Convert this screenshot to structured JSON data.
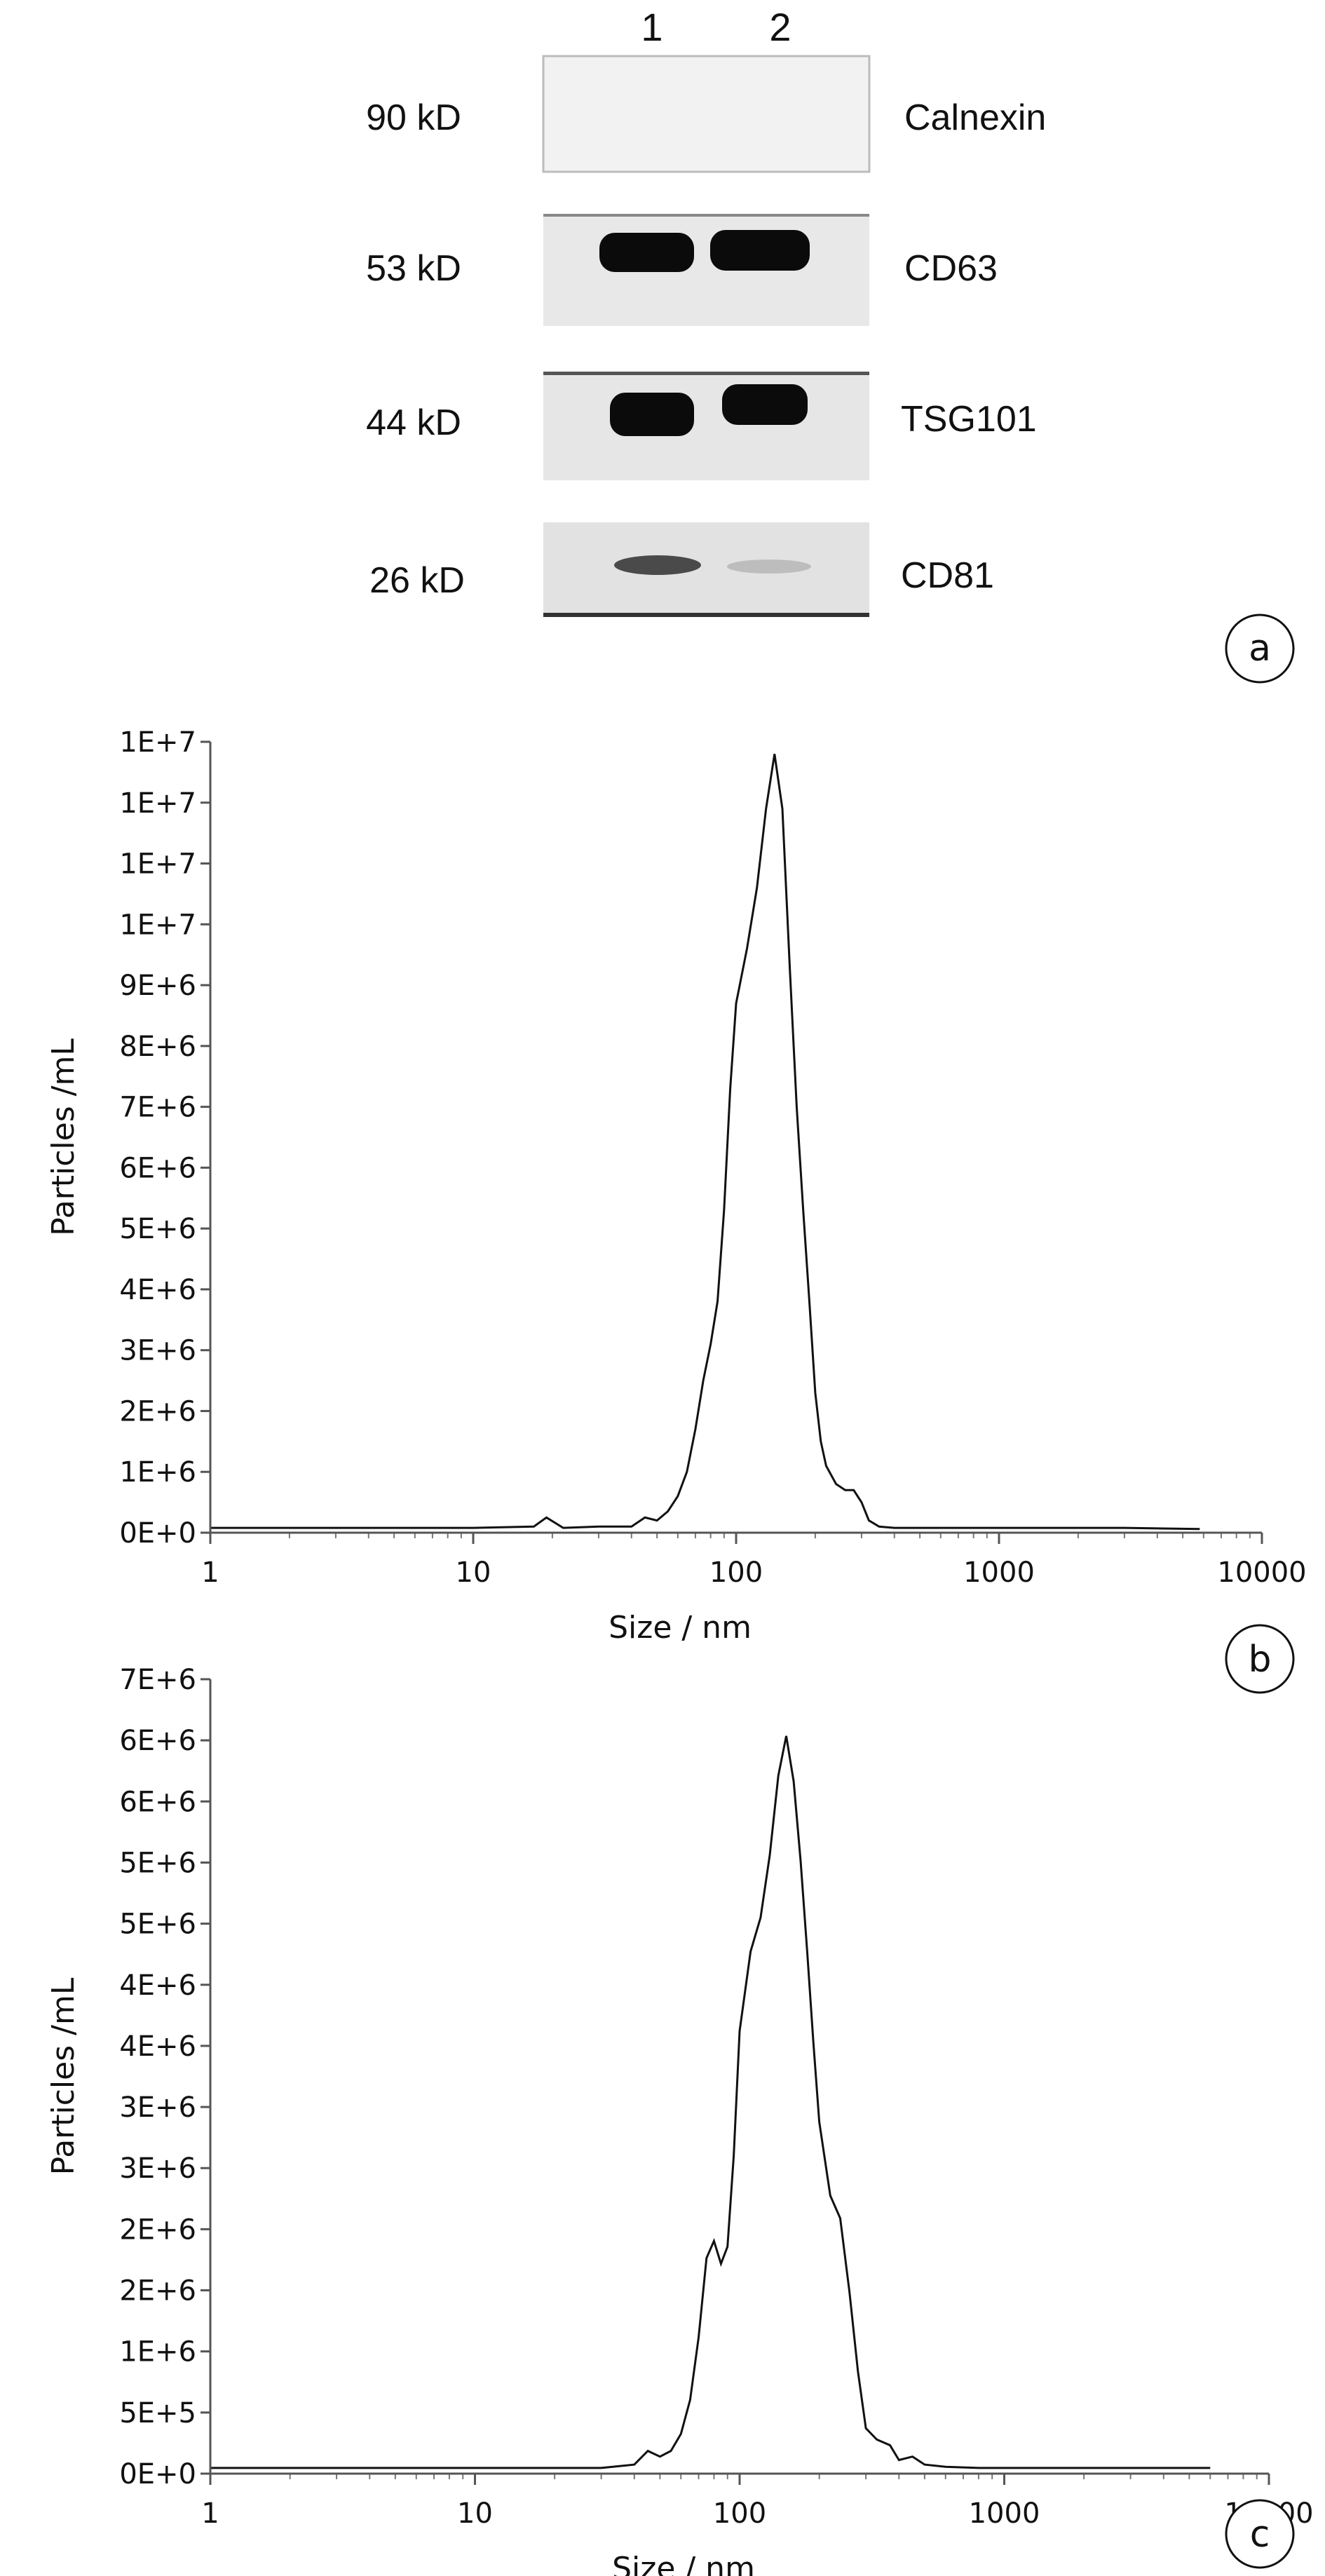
{
  "panel_a": {
    "letter": "a",
    "lane_labels": [
      "1",
      "2"
    ],
    "blots": [
      {
        "marker": "90 kD",
        "protein": "Calnexin",
        "band_intensity": [
          0.0,
          0.0
        ]
      },
      {
        "marker": "53 kD",
        "protein": "CD63",
        "band_intensity": [
          1.0,
          1.0
        ]
      },
      {
        "marker": "44 kD",
        "protein": "TSG101",
        "band_intensity": [
          1.0,
          1.0
        ]
      },
      {
        "marker": "26 kD",
        "protein": "CD81",
        "band_intensity": [
          0.55,
          0.12
        ]
      }
    ]
  },
  "chart_data": [
    {
      "panel": "b",
      "type": "line",
      "xlabel": "Size / nm",
      "ylabel": "Particles /mL",
      "xscale": "log",
      "xlim": [
        1,
        10000
      ],
      "xticks": [
        "1",
        "10",
        "100",
        "1000",
        "10000"
      ],
      "ylim": [
        0,
        13000000
      ],
      "yticks": [
        "0E+0",
        "1E+6",
        "2E+6",
        "3E+6",
        "4E+6",
        "5E+6",
        "6E+6",
        "7E+6",
        "8E+6",
        "9E+6",
        "1E+7",
        "1E+7",
        "1E+7",
        "1E+7"
      ],
      "x": [
        1,
        10,
        17,
        19,
        22,
        30,
        40,
        45,
        50,
        55,
        60,
        65,
        70,
        75,
        80,
        85,
        90,
        95,
        100,
        110,
        120,
        130,
        140,
        150,
        160,
        170,
        180,
        190,
        200,
        210,
        220,
        240,
        260,
        280,
        300,
        320,
        350,
        400,
        500,
        1000,
        3000,
        5800
      ],
      "y": [
        80000,
        80000,
        100000,
        250000,
        80000,
        100000,
        100000,
        250000,
        200000,
        350000,
        600000,
        1000000,
        1700000,
        2500000,
        3100000,
        3800000,
        5300000,
        7300000,
        8700000,
        9600000,
        10600000,
        11900000,
        12800000,
        11900000,
        9300000,
        7000000,
        5300000,
        3800000,
        2300000,
        1500000,
        1100000,
        800000,
        700000,
        700000,
        500000,
        200000,
        100000,
        80000,
        80000,
        80000,
        80000,
        60000
      ]
    },
    {
      "panel": "c",
      "type": "line",
      "xlabel": "Size / nm",
      "ylabel": "Particles /mL",
      "xscale": "log",
      "xlim": [
        1,
        10000
      ],
      "xticks": [
        "1",
        "10",
        "100",
        "1000",
        "10000"
      ],
      "ylim": [
        0,
        7000000
      ],
      "yticks": [
        "0E+0",
        "5E+5",
        "1E+6",
        "2E+6",
        "2E+6",
        "3E+6",
        "3E+6",
        "4E+6",
        "4E+6",
        "5E+6",
        "5E+6",
        "6E+6",
        "6E+6",
        "7E+6"
      ],
      "x": [
        1,
        10,
        30,
        40,
        45,
        50,
        55,
        60,
        65,
        70,
        75,
        80,
        85,
        90,
        95,
        100,
        110,
        120,
        130,
        140,
        150,
        160,
        170,
        180,
        190,
        200,
        220,
        240,
        260,
        280,
        300,
        330,
        370,
        400,
        450,
        500,
        600,
        800,
        1000,
        6000
      ],
      "y": [
        50000,
        50000,
        50000,
        80000,
        200000,
        150000,
        200000,
        350000,
        650000,
        1200000,
        1900000,
        2050000,
        1850000,
        2000000,
        2800000,
        3900000,
        4600000,
        4900000,
        5450000,
        6150000,
        6500000,
        6100000,
        5400000,
        4600000,
        3800000,
        3100000,
        2450000,
        2250000,
        1600000,
        900000,
        400000,
        300000,
        250000,
        120000,
        150000,
        80000,
        60000,
        50000,
        50000,
        50000
      ]
    }
  ],
  "panel_letters": {
    "b": "b",
    "c": "c"
  }
}
